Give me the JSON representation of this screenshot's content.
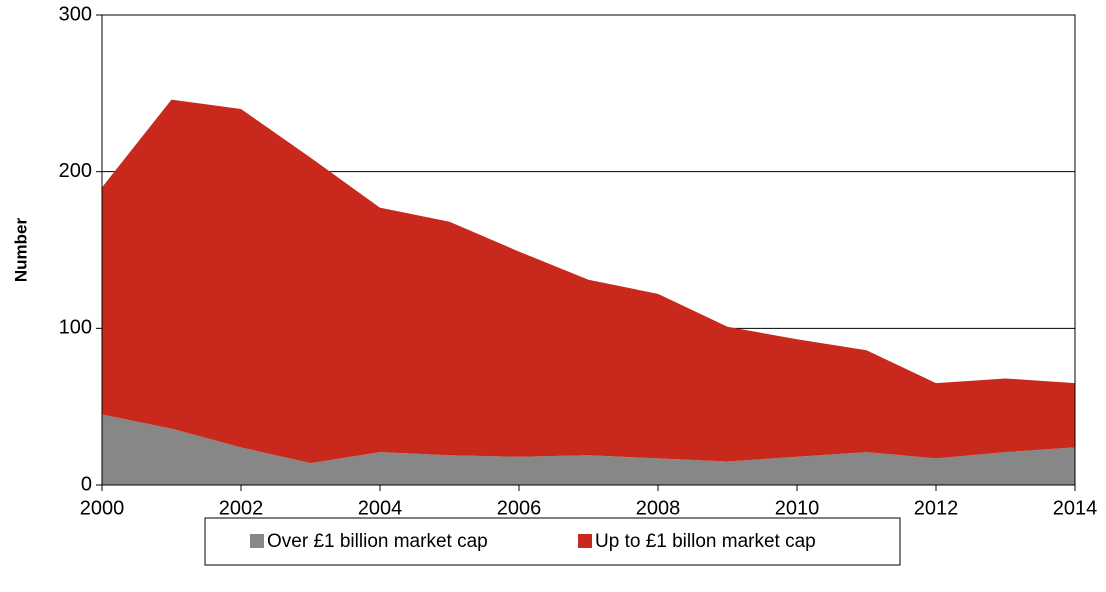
{
  "chart_data": {
    "type": "stacked_area",
    "ylabel": "Number",
    "x": [
      2000,
      2001,
      2002,
      2003,
      2004,
      2005,
      2006,
      2007,
      2008,
      2009,
      2010,
      2011,
      2012,
      2013,
      2014
    ],
    "series": [
      {
        "name": "Over £1 billion market cap",
        "color": "#878787",
        "values": [
          45,
          36,
          24,
          14,
          21,
          19,
          18,
          19,
          17,
          15,
          18,
          21,
          17,
          21,
          24
        ]
      },
      {
        "name": "Up to £1 billon market cap",
        "color": "#c8291c",
        "values": [
          145,
          210,
          216,
          195,
          156,
          149,
          131,
          112,
          105,
          86,
          75,
          65,
          48,
          47,
          41
        ]
      }
    ],
    "xlim": [
      2000,
      2014
    ],
    "xticks": [
      2000,
      2002,
      2004,
      2006,
      2008,
      2010,
      2012,
      2014
    ],
    "ylim": [
      0,
      300
    ],
    "yticks": [
      0,
      100,
      200,
      300
    ],
    "grid": true,
    "legend": "bottom"
  }
}
